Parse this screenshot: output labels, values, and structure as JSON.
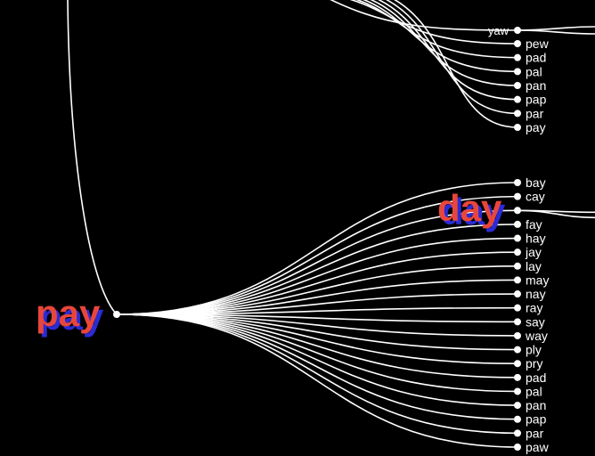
{
  "upper_branch": {
    "parent_label": "yaw",
    "children": [
      "pew",
      "pad",
      "pal",
      "pan",
      "pap",
      "par",
      "pay"
    ]
  },
  "main_node": {
    "label": "pay",
    "children": [
      "bay",
      "cay",
      "day",
      "fay",
      "hay",
      "jay",
      "lay",
      "may",
      "nay",
      "ray",
      "say",
      "way",
      "ply",
      "pry",
      "pad",
      "pal",
      "pan",
      "pap",
      "par",
      "paw"
    ]
  },
  "highlighted_child": "day",
  "colors": {
    "background": "#000000",
    "link": "#ffffff",
    "highlight": "#e8463c",
    "highlight_shadow": "#2b2bd6"
  }
}
